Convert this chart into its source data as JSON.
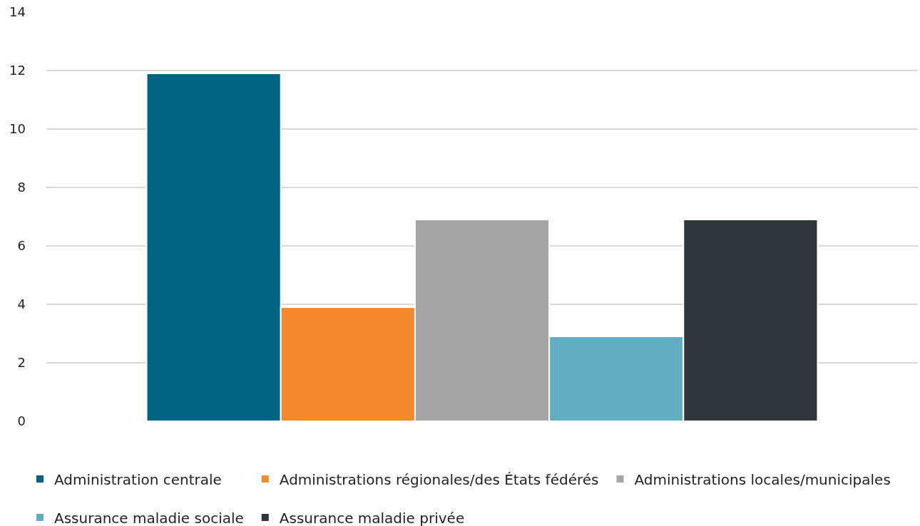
{
  "chart_data": {
    "type": "bar",
    "categories": [
      null
    ],
    "series": [
      {
        "name": "Administration centrale",
        "color": "#006482",
        "values": [
          11.9
        ]
      },
      {
        "name": "Administrations régionales/des États fédérés",
        "color": "#f4882d",
        "values": [
          3.9
        ]
      },
      {
        "name": "Administrations locales/municipales",
        "color": "#a5a5a5",
        "values": [
          6.9
        ]
      },
      {
        "name": "Assurance maladie sociale",
        "color": "#61adc2",
        "values": [
          2.9
        ]
      },
      {
        "name": "Assurance maladie privée",
        "color": "#2f373b",
        "values": [
          6.9
        ]
      }
    ],
    "ylim": [
      0,
      14
    ],
    "yticks": [
      0,
      2,
      4,
      6,
      8,
      10,
      12,
      14
    ],
    "grid": "y",
    "legend": "bottom",
    "tick_labels": "y"
  }
}
